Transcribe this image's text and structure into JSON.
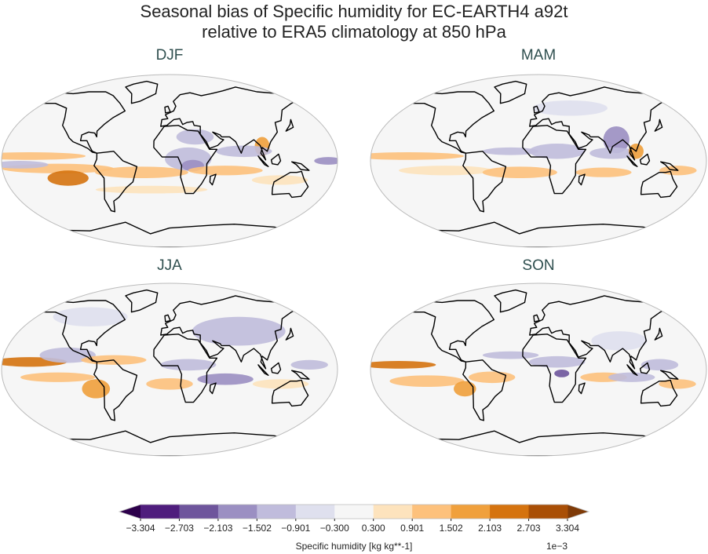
{
  "title_line1": "Seasonal bias of Specific humidity for EC-EARTH4 a92t",
  "title_line2": "relative to ERA5 climatology at 850 hPa",
  "panels": [
    {
      "label": "DJF"
    },
    {
      "label": "MAM"
    },
    {
      "label": "JJA"
    },
    {
      "label": "SON"
    }
  ],
  "chart_data": {
    "type": "heatmap",
    "subtype": "filled contour map, Robinson projection, 2x2 panels",
    "colorbar": {
      "label": "Specific humidity [kg kg**-1]",
      "multiplier": "1e−3",
      "ticks": [
        "−3.304",
        "−2.703",
        "−2.103",
        "−1.502",
        "−0.901",
        "−0.300",
        "0.300",
        "0.901",
        "1.502",
        "2.103",
        "2.703",
        "3.304"
      ],
      "levels": [
        -3.304,
        -2.703,
        -2.103,
        -1.502,
        -0.901,
        -0.3,
        0.3,
        0.901,
        1.502,
        2.103,
        2.703,
        3.304
      ],
      "extend": "both",
      "colors": [
        "#2d004b",
        "#4f1d7d",
        "#6e559c",
        "#9b8fc2",
        "#c0bcdc",
        "#dfe0ee",
        "#f6f6f6",
        "#fde3bd",
        "#fdc17c",
        "#f0a03c",
        "#d5730f",
        "#a94f06",
        "#7f3b08"
      ]
    }
  }
}
